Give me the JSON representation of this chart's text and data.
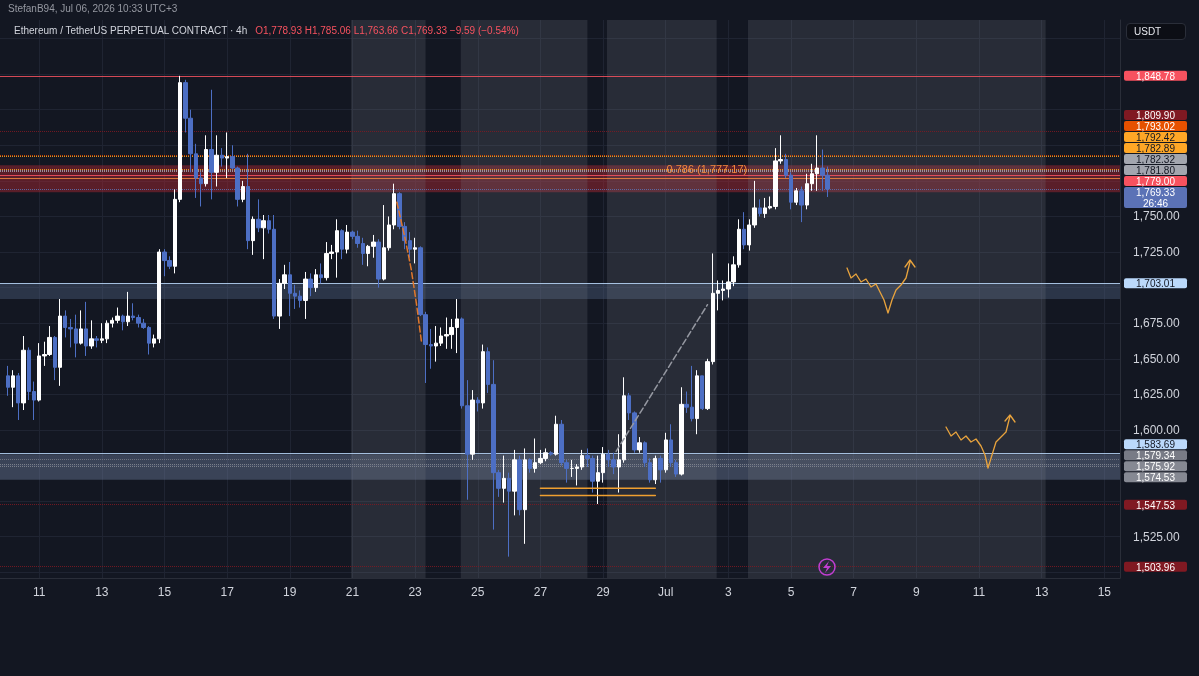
{
  "chart_data": {
    "type": "candlestick",
    "title": "Ethereum / TetherUS PERPETUAL CONTRACT · 4h",
    "subtitle": "O1,778.93 H1,785.06 L1,763.66 C1,769.33 −9.59 (−0.54%)",
    "ylabel": "USDT",
    "annotations": [
      "StefanB94, Jul 06, 2026 10:33 UTC+3",
      {
        "text": "0.786 (1,777.17)",
        "x": "2026-07-02T07:30",
        "y": 1777.17
      }
    ],
    "x": [
      "2026-06-10T00:00",
      "2026-06-10T04:00",
      "2026-06-10T08:00",
      "2026-06-10T12:00",
      "2026-06-10T16:00",
      "2026-06-10T20:00",
      "2026-06-11T00:00",
      "2026-06-11T04:00",
      "2026-06-11T08:00",
      "2026-06-11T12:00",
      "2026-06-11T16:00",
      "2026-06-11T20:00",
      "2026-06-12T00:00",
      "2026-06-12T04:00",
      "2026-06-12T08:00",
      "2026-06-12T12:00",
      "2026-06-12T16:00",
      "2026-06-12T20:00",
      "2026-06-13T00:00",
      "2026-06-13T04:00",
      "2026-06-13T08:00",
      "2026-06-13T12:00",
      "2026-06-13T16:00",
      "2026-06-13T20:00",
      "2026-06-14T00:00",
      "2026-06-14T04:00",
      "2026-06-14T08:00",
      "2026-06-14T12:00",
      "2026-06-14T16:00",
      "2026-06-14T20:00",
      "2026-06-15T00:00",
      "2026-06-15T04:00",
      "2026-06-15T08:00",
      "2026-06-15T12:00",
      "2026-06-15T16:00",
      "2026-06-15T20:00",
      "2026-06-16T00:00",
      "2026-06-16T04:00",
      "2026-06-16T08:00",
      "2026-06-16T12:00",
      "2026-06-16T16:00",
      "2026-06-16T20:00",
      "2026-06-17T00:00",
      "2026-06-17T04:00",
      "2026-06-17T08:00",
      "2026-06-17T12:00",
      "2026-06-17T16:00",
      "2026-06-17T20:00",
      "2026-06-18T00:00",
      "2026-06-18T04:00",
      "2026-06-18T08:00",
      "2026-06-18T12:00",
      "2026-06-18T16:00",
      "2026-06-18T20:00",
      "2026-06-19T00:00",
      "2026-06-19T04:00",
      "2026-06-19T08:00",
      "2026-06-19T12:00",
      "2026-06-19T16:00",
      "2026-06-19T20:00",
      "2026-06-20T00:00",
      "2026-06-20T04:00",
      "2026-06-20T08:00",
      "2026-06-20T12:00",
      "2026-06-20T16:00",
      "2026-06-20T20:00",
      "2026-06-21T00:00",
      "2026-06-21T04:00",
      "2026-06-21T08:00",
      "2026-06-21T12:00",
      "2026-06-21T16:00",
      "2026-06-21T20:00",
      "2026-06-22T00:00",
      "2026-06-22T04:00",
      "2026-06-22T08:00",
      "2026-06-22T12:00",
      "2026-06-22T16:00",
      "2026-06-22T20:00",
      "2026-06-23T00:00",
      "2026-06-23T04:00",
      "2026-06-23T08:00",
      "2026-06-23T12:00",
      "2026-06-23T16:00",
      "2026-06-23T20:00",
      "2026-06-24T00:00",
      "2026-06-24T04:00",
      "2026-06-24T08:00",
      "2026-06-24T12:00",
      "2026-06-24T16:00",
      "2026-06-24T20:00",
      "2026-06-25T00:00",
      "2026-06-25T04:00",
      "2026-06-25T08:00",
      "2026-06-25T12:00",
      "2026-06-25T16:00",
      "2026-06-25T20:00",
      "2026-06-26T00:00",
      "2026-06-26T04:00",
      "2026-06-26T08:00",
      "2026-06-26T12:00",
      "2026-06-26T16:00",
      "2026-06-26T20:00",
      "2026-06-27T00:00",
      "2026-06-27T04:00",
      "2026-06-27T08:00",
      "2026-06-27T12:00",
      "2026-06-27T16:00",
      "2026-06-27T20:00",
      "2026-06-28T00:00",
      "2026-06-28T04:00",
      "2026-06-28T08:00",
      "2026-06-28T12:00",
      "2026-06-28T16:00",
      "2026-06-28T20:00",
      "2026-06-29T00:00",
      "2026-06-29T04:00",
      "2026-06-29T08:00",
      "2026-06-29T12:00",
      "2026-06-29T16:00",
      "2026-06-29T20:00",
      "2026-06-30T00:00",
      "2026-06-30T04:00",
      "2026-06-30T08:00",
      "2026-06-30T12:00",
      "2026-06-30T16:00",
      "2026-06-30T20:00",
      "2026-07-01T00:00",
      "2026-07-01T04:00",
      "2026-07-01T08:00",
      "2026-07-01T12:00",
      "2026-07-01T16:00",
      "2026-07-01T20:00",
      "2026-07-02T00:00",
      "2026-07-02T04:00",
      "2026-07-02T08:00",
      "2026-07-02T12:00",
      "2026-07-02T16:00",
      "2026-07-02T20:00",
      "2026-07-03T00:00",
      "2026-07-03T04:00",
      "2026-07-03T08:00",
      "2026-07-03T12:00",
      "2026-07-03T16:00",
      "2026-07-03T20:00",
      "2026-07-04T00:00",
      "2026-07-04T04:00",
      "2026-07-04T08:00",
      "2026-07-04T12:00",
      "2026-07-04T16:00",
      "2026-07-04T20:00",
      "2026-07-05T00:00",
      "2026-07-05T04:00",
      "2026-07-05T08:00",
      "2026-07-05T12:00",
      "2026-07-05T16:00",
      "2026-07-05T20:00",
      "2026-07-06T00:00",
      "2026-07-06T04:00"
    ],
    "ohlc": [
      [
        1638,
        1645,
        1624,
        1630
      ],
      [
        1630,
        1642,
        1616,
        1638
      ],
      [
        1638,
        1640,
        1607,
        1619
      ],
      [
        1619,
        1666,
        1614,
        1656
      ],
      [
        1656,
        1658,
        1621,
        1627
      ],
      [
        1627,
        1634,
        1607,
        1621
      ],
      [
        1621,
        1661,
        1620,
        1652
      ],
      [
        1652,
        1662,
        1645,
        1653
      ],
      [
        1653,
        1673,
        1652,
        1665
      ],
      [
        1665,
        1666,
        1635,
        1644
      ],
      [
        1644,
        1692,
        1631,
        1680
      ],
      [
        1680,
        1684,
        1665,
        1672
      ],
      [
        1672,
        1678,
        1658,
        1671
      ],
      [
        1671,
        1681,
        1651,
        1661
      ],
      [
        1661,
        1684,
        1660,
        1671
      ],
      [
        1671,
        1690,
        1652,
        1659
      ],
      [
        1659,
        1677,
        1657,
        1664
      ],
      [
        1664,
        1666,
        1658,
        1663
      ],
      [
        1663,
        1675,
        1661,
        1664
      ],
      [
        1664,
        1677,
        1661,
        1675
      ],
      [
        1675,
        1679,
        1672,
        1677
      ],
      [
        1677,
        1686,
        1675,
        1680
      ],
      [
        1680,
        1681,
        1670,
        1676
      ],
      [
        1676,
        1697,
        1673,
        1680
      ],
      [
        1680,
        1689,
        1677,
        1679
      ],
      [
        1679,
        1681,
        1672,
        1675
      ],
      [
        1675,
        1678,
        1671,
        1672
      ],
      [
        1672,
        1673,
        1653,
        1661
      ],
      [
        1661,
        1667,
        1658,
        1664
      ],
      [
        1664,
        1727,
        1661,
        1725
      ],
      [
        1725,
        1727,
        1708,
        1719
      ],
      [
        1719,
        1722,
        1713,
        1715
      ],
      [
        1715,
        1769,
        1710,
        1762
      ],
      [
        1762,
        1848.78,
        1760,
        1844
      ],
      [
        1844,
        1846,
        1809,
        1819
      ],
      [
        1819,
        1825,
        1781,
        1794
      ],
      [
        1794,
        1801,
        1763,
        1777
      ],
      [
        1777,
        1781,
        1757,
        1773
      ],
      [
        1773,
        1807,
        1771,
        1797
      ],
      [
        1797,
        1839,
        1762,
        1781
      ],
      [
        1781,
        1807,
        1771,
        1793
      ],
      [
        1793,
        1798,
        1785,
        1791
      ],
      [
        1791,
        1809,
        1777,
        1792
      ],
      [
        1792,
        1800,
        1783,
        1784
      ],
      [
        1784,
        1785,
        1757,
        1762
      ],
      [
        1762,
        1775,
        1760,
        1771
      ],
      [
        1771,
        1794,
        1727,
        1733
      ],
      [
        1733,
        1750,
        1723,
        1748
      ],
      [
        1748,
        1762,
        1739,
        1742
      ],
      [
        1742,
        1751,
        1720,
        1747
      ],
      [
        1747,
        1751,
        1738,
        1741
      ],
      [
        1741,
        1751,
        1678,
        1680
      ],
      [
        1680,
        1706,
        1671,
        1703
      ],
      [
        1703,
        1716,
        1699,
        1709
      ],
      [
        1709,
        1718,
        1680,
        1696
      ],
      [
        1696,
        1702,
        1685,
        1694
      ],
      [
        1694,
        1698,
        1686,
        1691
      ],
      [
        1691,
        1711,
        1678,
        1706
      ],
      [
        1706,
        1710,
        1694,
        1700
      ],
      [
        1700,
        1713,
        1697,
        1709
      ],
      [
        1709,
        1717,
        1703,
        1707
      ],
      [
        1707,
        1732,
        1705,
        1724
      ],
      [
        1724,
        1730,
        1720,
        1725
      ],
      [
        1725,
        1748,
        1707,
        1740
      ],
      [
        1740,
        1741,
        1720,
        1727
      ],
      [
        1727,
        1744,
        1724,
        1739
      ],
      [
        1739,
        1740,
        1734,
        1736
      ],
      [
        1736,
        1740,
        1728,
        1731
      ],
      [
        1731,
        1735,
        1716,
        1724
      ],
      [
        1724,
        1730,
        1715,
        1729
      ],
      [
        1729,
        1737,
        1721,
        1732
      ],
      [
        1732,
        1734,
        1700,
        1706
      ],
      [
        1706,
        1758,
        1705,
        1728
      ],
      [
        1728,
        1750,
        1726,
        1744
      ],
      [
        1744,
        1773,
        1741,
        1766
      ],
      [
        1766,
        1767,
        1741,
        1743
      ],
      [
        1743,
        1746,
        1727,
        1733
      ],
      [
        1733,
        1739,
        1721,
        1727
      ],
      [
        1727,
        1735,
        1717,
        1728
      ],
      [
        1728,
        1729,
        1680,
        1681
      ],
      [
        1681,
        1683,
        1633,
        1660
      ],
      [
        1660,
        1671,
        1643,
        1659
      ],
      [
        1659,
        1673,
        1648,
        1661
      ],
      [
        1661,
        1672,
        1659,
        1666
      ],
      [
        1666,
        1679,
        1657,
        1667
      ],
      [
        1667,
        1678,
        1657,
        1672
      ],
      [
        1672,
        1692,
        1654,
        1678
      ],
      [
        1678,
        1679,
        1615,
        1617
      ],
      [
        1617,
        1635,
        1551,
        1583
      ],
      [
        1583,
        1628,
        1579,
        1621
      ],
      [
        1621,
        1623,
        1613,
        1619
      ],
      [
        1619,
        1660,
        1615,
        1655
      ],
      [
        1655,
        1658,
        1626,
        1632
      ],
      [
        1632,
        1649,
        1530,
        1570
      ],
      [
        1570,
        1572,
        1553,
        1559
      ],
      [
        1559,
        1582,
        1549,
        1566
      ],
      [
        1566,
        1570,
        1511,
        1557
      ],
      [
        1557,
        1586,
        1540,
        1579
      ],
      [
        1579,
        1582,
        1540,
        1544
      ],
      [
        1544,
        1587,
        1520,
        1579
      ],
      [
        1579,
        1580,
        1570,
        1573
      ],
      [
        1573,
        1594,
        1570,
        1577
      ],
      [
        1577,
        1586,
        1576,
        1580
      ],
      [
        1580,
        1587,
        1578,
        1584
      ],
      [
        1584,
        1585,
        1582,
        1583
      ],
      [
        1583,
        1610,
        1582,
        1604
      ],
      [
        1604,
        1607,
        1575,
        1577
      ],
      [
        1577,
        1579,
        1563,
        1573
      ],
      [
        1573,
        1579,
        1567,
        1573
      ],
      [
        1573,
        1576,
        1561,
        1574
      ],
      [
        1574,
        1586,
        1572,
        1582
      ],
      [
        1582,
        1587,
        1574,
        1580
      ],
      [
        1580,
        1582,
        1556,
        1564
      ],
      [
        1564,
        1582,
        1548,
        1570
      ],
      [
        1570,
        1588,
        1563,
        1583
      ],
      [
        1583,
        1586,
        1574,
        1579
      ],
      [
        1579,
        1584,
        1569,
        1574
      ],
      [
        1574,
        1597,
        1556,
        1579
      ],
      [
        1579,
        1637,
        1577,
        1624
      ],
      [
        1624,
        1626,
        1607,
        1612
      ],
      [
        1612,
        1613,
        1584,
        1586
      ],
      [
        1586,
        1595,
        1584,
        1591
      ],
      [
        1591,
        1592,
        1574,
        1577
      ],
      [
        1577,
        1580,
        1563,
        1565
      ],
      [
        1565,
        1582,
        1562,
        1580
      ],
      [
        1580,
        1582,
        1563,
        1572
      ],
      [
        1572,
        1598,
        1570,
        1593
      ],
      [
        1593,
        1604,
        1574,
        1577
      ],
      [
        1577,
        1579,
        1567,
        1569
      ],
      [
        1569,
        1630,
        1568,
        1618
      ],
      [
        1618,
        1627,
        1612,
        1616
      ],
      [
        1616,
        1645,
        1606,
        1608
      ],
      [
        1608,
        1642,
        1597,
        1638
      ],
      [
        1638,
        1638,
        1614,
        1615
      ],
      [
        1615,
        1650,
        1614,
        1648
      ],
      [
        1648,
        1724,
        1646,
        1696
      ],
      [
        1696,
        1705,
        1684,
        1698
      ],
      [
        1698,
        1705,
        1691,
        1699
      ],
      [
        1699,
        1717,
        1693,
        1704
      ],
      [
        1704,
        1722,
        1701,
        1716
      ],
      [
        1716,
        1748,
        1714,
        1741
      ],
      [
        1741,
        1753,
        1727,
        1730
      ],
      [
        1730,
        1748,
        1726,
        1744
      ],
      [
        1744,
        1775,
        1742,
        1756
      ],
      [
        1756,
        1762,
        1750,
        1752
      ],
      [
        1752,
        1763,
        1749,
        1756
      ],
      [
        1756,
        1764,
        1755,
        1757
      ],
      [
        1757,
        1798,
        1755,
        1789
      ],
      [
        1789,
        1807,
        1787,
        1790
      ],
      [
        1790,
        1794,
        1777,
        1779
      ],
      [
        1779,
        1781,
        1755,
        1760
      ],
      [
        1760,
        1770,
        1758,
        1768
      ],
      [
        1768,
        1771,
        1746,
        1758
      ],
      [
        1758,
        1780,
        1755,
        1773
      ],
      [
        1773,
        1787,
        1768,
        1780
      ],
      [
        1780,
        1807,
        1768,
        1784
      ],
      [
        1784,
        1797,
        1768,
        1778.93
      ],
      [
        1778.93,
        1785.06,
        1763.66,
        1769.33
      ]
    ],
    "colors": [
      "#4d6fc4",
      "#ffffff",
      "#4d6fc4",
      "#ffffff",
      "#4d6fc4",
      "#4d6fc4",
      "#ffffff",
      "#ffffff",
      "#ffffff",
      "#4d6fc4",
      "#ffffff",
      "#4d6fc4",
      "#4d6fc4",
      "#4d6fc4",
      "#ffffff",
      "#4d6fc4",
      "#ffffff",
      "#4d6fc4",
      "#ffffff",
      "#ffffff",
      "#ffffff",
      "#ffffff",
      "#4d6fc4",
      "#ffffff",
      "#4d6fc4",
      "#4d6fc4",
      "#4d6fc4",
      "#4d6fc4",
      "#ffffff",
      "#ffffff",
      "#4d6fc4",
      "#4d6fc4",
      "#ffffff",
      "#ffffff",
      "#4d6fc4",
      "#4d6fc4",
      "#4d6fc4",
      "#4d6fc4",
      "#ffffff",
      "#4d6fc4",
      "#ffffff",
      "#4d6fc4",
      "#ffffff",
      "#4d6fc4",
      "#4d6fc4",
      "#ffffff",
      "#4d6fc4",
      "#ffffff",
      "#4d6fc4",
      "#ffffff",
      "#4d6fc4",
      "#4d6fc4",
      "#ffffff",
      "#ffffff",
      "#4d6fc4",
      "#4d6fc4",
      "#4d6fc4",
      "#ffffff",
      "#4d6fc4",
      "#ffffff",
      "#4d6fc4",
      "#ffffff",
      "#ffffff",
      "#ffffff",
      "#4d6fc4",
      "#ffffff",
      "#4d6fc4",
      "#4d6fc4",
      "#4d6fc4",
      "#ffffff",
      "#ffffff",
      "#4d6fc4",
      "#ffffff",
      "#ffffff",
      "#ffffff",
      "#4d6fc4",
      "#4d6fc4",
      "#4d6fc4",
      "#ffffff",
      "#4d6fc4",
      "#4d6fc4",
      "#4d6fc4",
      "#ffffff",
      "#ffffff",
      "#ffffff",
      "#ffffff",
      "#ffffff",
      "#4d6fc4",
      "#4d6fc4",
      "#ffffff",
      "#4d6fc4",
      "#ffffff",
      "#4d6fc4",
      "#4d6fc4",
      "#4d6fc4",
      "#ffffff",
      "#4d6fc4",
      "#ffffff",
      "#4d6fc4",
      "#ffffff",
      "#4d6fc4",
      "#ffffff",
      "#ffffff",
      "#ffffff",
      "#4d6fc4",
      "#ffffff",
      "#4d6fc4",
      "#4d6fc4",
      "#ffffff",
      "#ffffff",
      "#ffffff",
      "#4d6fc4",
      "#4d6fc4",
      "#ffffff",
      "#ffffff",
      "#4d6fc4",
      "#4d6fc4",
      "#ffffff",
      "#ffffff",
      "#4d6fc4",
      "#4d6fc4",
      "#ffffff",
      "#4d6fc4",
      "#4d6fc4",
      "#ffffff",
      "#4d6fc4",
      "#ffffff",
      "#4d6fc4",
      "#4d6fc4",
      "#ffffff",
      "#4d6fc4",
      "#4d6fc4",
      "#ffffff",
      "#4d6fc4",
      "#ffffff",
      "#ffffff",
      "#ffffff",
      "#ffffff",
      "#ffffff",
      "#ffffff",
      "#ffffff",
      "#4d6fc4",
      "#ffffff",
      "#ffffff",
      "#4d6fc4",
      "#ffffff",
      "#ffffff",
      "#ffffff",
      "#ffffff",
      "#4d6fc4",
      "#4d6fc4",
      "#ffffff",
      "#4d6fc4",
      "#ffffff",
      "#ffffff",
      "#ffffff",
      "#4d6fc4",
      "#4d6fc4"
    ],
    "series": [
      {
        "type": "line",
        "x": [
          "2026-06-27T00:00",
          "2026-06-30T16:00"
        ],
        "values": [
          1559,
          1559
        ],
        "color": "#f0a030",
        "line_style": "solid"
      },
      {
        "type": "line",
        "x": [
          "2026-06-27T00:00",
          "2026-06-30T16:00"
        ],
        "values": [
          1554,
          1554
        ],
        "color": "#f0a030",
        "line_style": "solid"
      },
      {
        "type": "line",
        "x": [
          "2026-06-29T10:00",
          "2026-07-02T08:00"
        ],
        "values": [
          1585,
          1688
        ],
        "color": "#9598a1",
        "line_style": "dashed"
      },
      {
        "type": "line",
        "x": [
          "2026-06-22T10:00",
          "2026-06-22T16:00",
          "2026-06-22T21:00",
          "2026-06-23T01:00",
          "2026-06-23T05:00"
        ],
        "values": [
          1760,
          1736,
          1713,
          1689,
          1661
        ],
        "color": "#e0772b",
        "line_style": "dashed"
      }
    ],
    "xlim": [
      "2026-06-09T18:00",
      "2026-07-15T12:00"
    ],
    "xticks": [
      {
        "value": "2026-06-11",
        "label": "11"
      },
      {
        "value": "2026-06-13",
        "label": "13"
      },
      {
        "value": "2026-06-15",
        "label": "15"
      },
      {
        "value": "2026-06-17",
        "label": "17"
      },
      {
        "value": "2026-06-19",
        "label": "19"
      },
      {
        "value": "2026-06-21",
        "label": "21"
      },
      {
        "value": "2026-06-23",
        "label": "23"
      },
      {
        "value": "2026-06-25",
        "label": "25"
      },
      {
        "value": "2026-06-27",
        "label": "27"
      },
      {
        "value": "2026-06-29",
        "label": "29"
      },
      {
        "value": "2026-07-01",
        "label": "Jul"
      },
      {
        "value": "2026-07-03",
        "label": "3"
      },
      {
        "value": "2026-07-05",
        "label": "5"
      },
      {
        "value": "2026-07-07",
        "label": "7"
      },
      {
        "value": "2026-07-09",
        "label": "9"
      },
      {
        "value": "2026-07-11",
        "label": "11"
      },
      {
        "value": "2026-07-13",
        "label": "13"
      },
      {
        "value": "2026-07-15",
        "label": "15"
      }
    ],
    "ylim": [
      1496,
      1888
    ],
    "yticks": [
      {
        "value": 1500,
        "label": null
      },
      {
        "value": 1525,
        "label": "1,525.00"
      },
      {
        "value": 1550,
        "label": null
      },
      {
        "value": 1575,
        "label": null
      },
      {
        "value": 1600,
        "label": "1,600.00"
      },
      {
        "value": 1625,
        "label": "1,625.00"
      },
      {
        "value": 1650,
        "label": "1,650.00"
      },
      {
        "value": 1675,
        "label": "1,675.00"
      },
      {
        "value": 1700,
        "label": null
      },
      {
        "value": 1725,
        "label": "1,725.00"
      },
      {
        "value": 1750,
        "label": "1,750.00"
      },
      {
        "value": 1775,
        "label": null
      },
      {
        "value": 1800,
        "label": null
      },
      {
        "value": 1825,
        "label": null
      },
      {
        "value": 1850,
        "label": null
      },
      {
        "value": 1875,
        "label": null
      }
    ],
    "ref_lines": [
      {
        "axis": "y",
        "value": 1848.78,
        "label": "1,848.78",
        "color": "#f7525f",
        "line_style": "solid"
      },
      {
        "axis": "y",
        "value": 1809.9,
        "label": "1,809.90",
        "color": "#801922",
        "line_style": "dotted"
      },
      {
        "axis": "y",
        "value": 1793.02,
        "label": "1,793.02",
        "color": "#e65100",
        "line_style": "dotted"
      },
      {
        "axis": "y",
        "value": 1792.42,
        "label": "1,792.42",
        "color": "#ffa726",
        "line_style": "dotted"
      },
      {
        "axis": "y",
        "value": 1782.89,
        "label": "1,782.89",
        "color": "#ffa726",
        "line_style": "dotted"
      },
      {
        "axis": "y",
        "value": 1782.32,
        "label": "1,782.32",
        "color": "#a3a6af",
        "line_style": "dotted"
      },
      {
        "axis": "y",
        "value": 1781.8,
        "label": "1,781.80",
        "color": "#a3a6af",
        "line_style": "dotted"
      },
      {
        "axis": "y",
        "value": 1779.0,
        "label": "1,779.00",
        "color": "#f7525f",
        "line_style": "solid"
      },
      {
        "axis": "y",
        "value": 1777.17,
        "color": "#f0883e",
        "line_style": "solid"
      },
      {
        "axis": "y",
        "value": 1769.33,
        "label": "1,769.33\n26:46",
        "color": "#5b72b6",
        "line_style": "dotted"
      },
      {
        "axis": "y",
        "value": 1703.01,
        "label": "1,703.01",
        "color": "#bbd9fb",
        "line_style": "solid"
      },
      {
        "axis": "y",
        "value": 1583.69,
        "label": "1,583.69",
        "color": "#bbd9fb",
        "line_style": "solid"
      },
      {
        "axis": "y",
        "value": 1579.34,
        "label": "1,579.34",
        "color": "#787b86",
        "line_style": "dotted"
      },
      {
        "axis": "y",
        "value": 1575.92,
        "label": "1,575.92",
        "color": "#868993",
        "line_style": "dotted"
      },
      {
        "axis": "y",
        "value": 1574.53,
        "label": "1,574.53",
        "color": "#868993",
        "line_style": "dotted"
      },
      {
        "axis": "y",
        "value": 1547.53,
        "label": "1,547.53",
        "color": "#801922",
        "line_style": "dotted"
      },
      {
        "axis": "y",
        "value": 1503.96,
        "label": "1,503.96",
        "color": "#801922",
        "line_style": "dotted"
      }
    ],
    "bands": [
      {
        "axis": "y",
        "from": 1767,
        "to": 1786,
        "color": "#b22833"
      },
      {
        "axis": "y",
        "from": 1692,
        "to": 1703,
        "color": "#4a5a78"
      },
      {
        "axis": "y",
        "from": 1565,
        "to": 1583,
        "color": "#6a7b9a"
      },
      {
        "axis": "x",
        "from": "2026-06-20T23:00",
        "to": "2026-06-23T08:00",
        "color": "#787b86"
      },
      {
        "axis": "x",
        "from": "2026-06-24T11:00",
        "to": "2026-06-28T12:00",
        "color": "#787b86"
      },
      {
        "axis": "x",
        "from": "2026-06-29T03:00",
        "to": "2026-07-02T15:00",
        "color": "#787b86"
      },
      {
        "axis": "x",
        "from": "2026-07-03T15:00",
        "to": "2026-07-13T03:00",
        "color": "#787b86"
      }
    ],
    "grid": true,
    "marker": "none"
  }
}
